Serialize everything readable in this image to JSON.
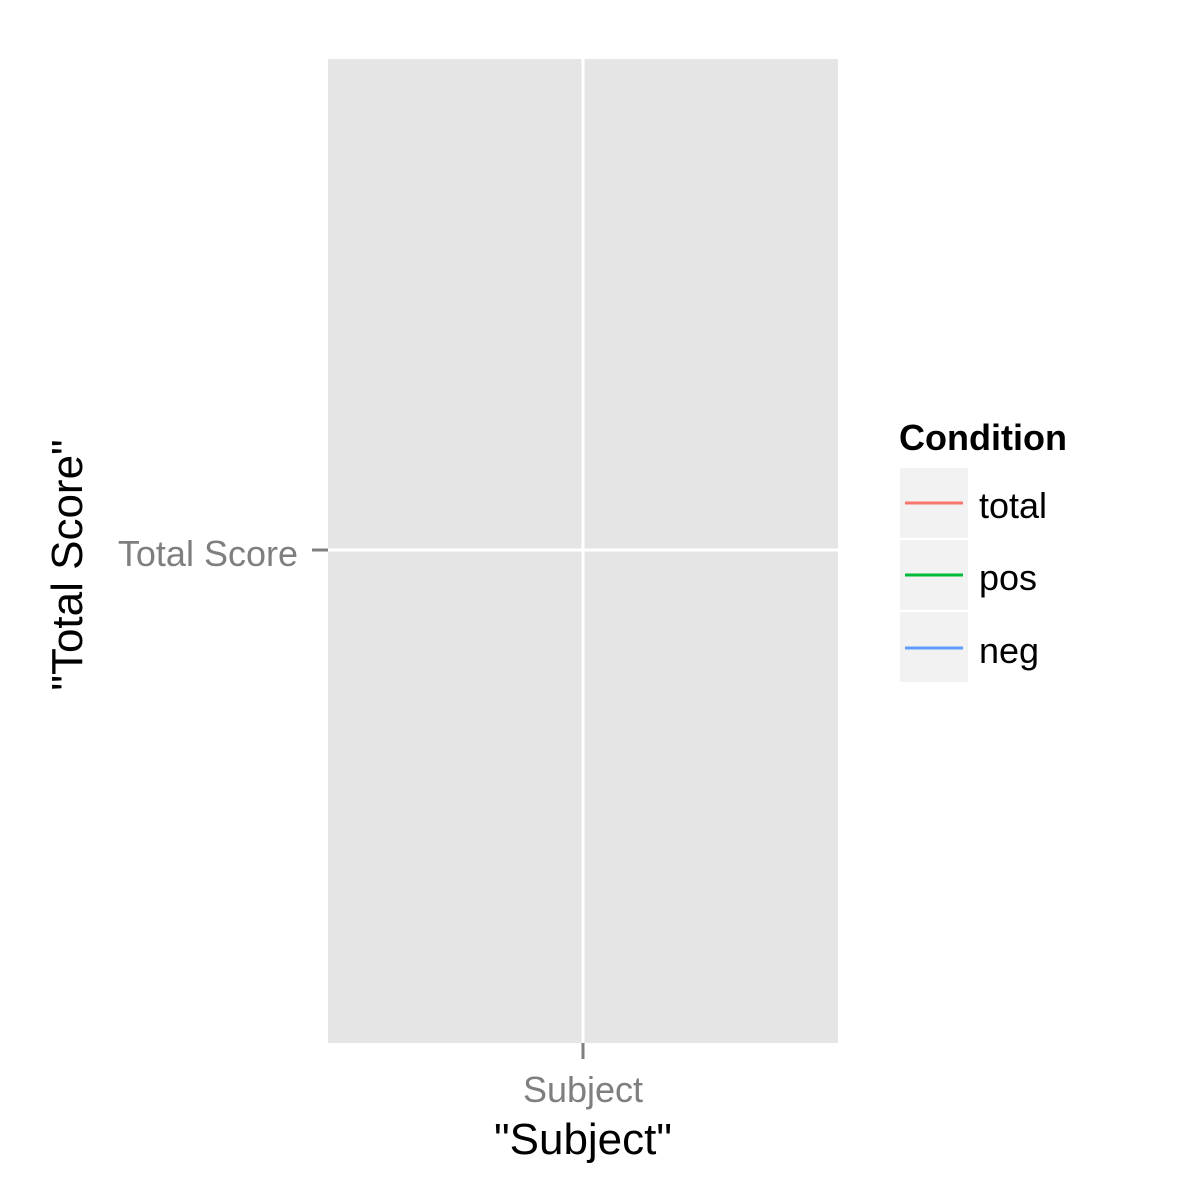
{
  "chart_data": {
    "type": "line",
    "title": "",
    "xlabel": "\"Subject\"",
    "ylabel": "\"Total Score\"",
    "x_categories": [
      "Subject"
    ],
    "y_categories": [
      "Total Score"
    ],
    "series": [
      {
        "name": "total",
        "color": "#F8766D",
        "values": []
      },
      {
        "name": "pos",
        "color": "#00BA38",
        "values": []
      },
      {
        "name": "neg",
        "color": "#619CFF",
        "values": []
      }
    ],
    "legend": {
      "title": "Condition",
      "position": "right"
    },
    "grid": true,
    "panel_background": "#e5e5e5"
  }
}
